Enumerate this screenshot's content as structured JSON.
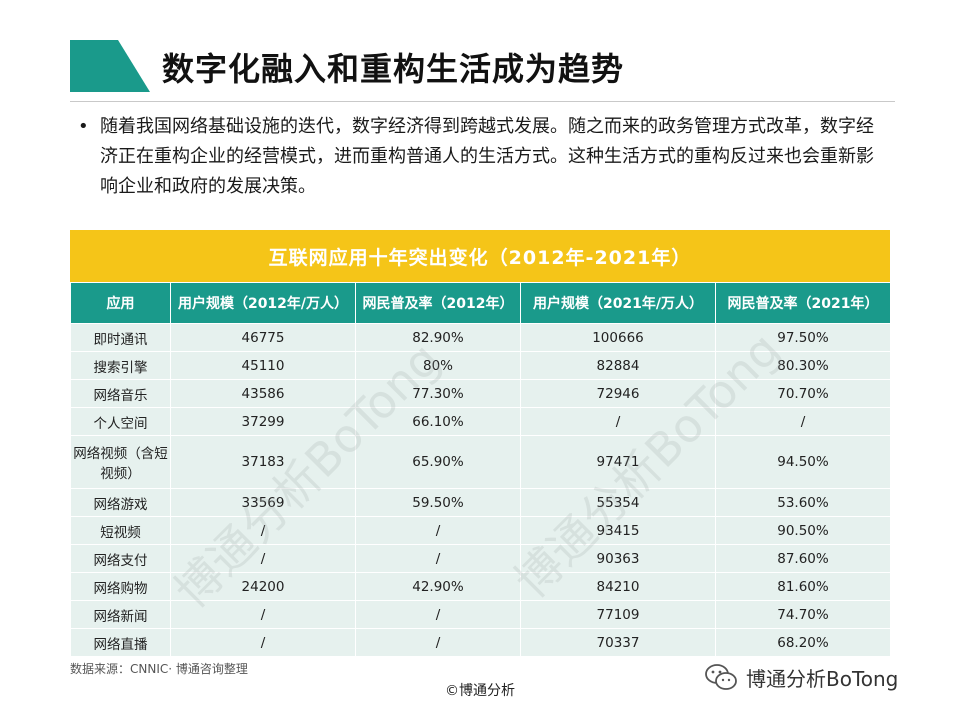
{
  "title": "数字化融入和重构生活成为趋势",
  "bullet": {
    "marker": "•",
    "text": "随着我国网络基础设施的迭代，数字经济得到跨越式发展。随之而来的政务管理方式改革，数字经济正在重构企业的经营模式，进而重构普通人的生活方式。这种生活方式的重构反过来也会重新影响企业和政府的发展决策。"
  },
  "table": {
    "caption": "互联网应用十年突出变化（2012年-2021年）",
    "headers": [
      "应用",
      "用户规模（2012年/万人）",
      "网民普及率（2012年）",
      "用户规模（2021年/万人）",
      "网民普及率（2021年）"
    ],
    "rows": [
      [
        "即时通讯",
        "46775",
        "82.90%",
        "100666",
        "97.50%"
      ],
      [
        "搜索引擎",
        "45110",
        "80%",
        "82884",
        "80.30%"
      ],
      [
        "网络音乐",
        "43586",
        "77.30%",
        "72946",
        "70.70%"
      ],
      [
        "个人空间",
        "37299",
        "66.10%",
        "/",
        "/"
      ],
      [
        "网络视频（含短视频）",
        "37183",
        "65.90%",
        "97471",
        "94.50%"
      ],
      [
        "网络游戏",
        "33569",
        "59.50%",
        "55354",
        "53.60%"
      ],
      [
        "短视频",
        "/",
        "/",
        "93415",
        "90.50%"
      ],
      [
        "网络支付",
        "/",
        "/",
        "90363",
        "87.60%"
      ],
      [
        "网络购物",
        "24200",
        "42.90%",
        "84210",
        "81.60%"
      ],
      [
        "网络新闻",
        "/",
        "/",
        "77109",
        "74.70%"
      ],
      [
        "网络直播",
        "/",
        "/",
        "70337",
        "68.20%"
      ]
    ]
  },
  "watermark": "博通分析BoTong",
  "source": "数据来源：CNNIC· 博通咨询整理",
  "copyright": "©博通分析",
  "wechat_label": "博通分析BoTong",
  "colors": {
    "accent_teal": "#1a9a8b",
    "caption_yellow": "#f5c518",
    "cell_bg": "#e6f1ee"
  }
}
